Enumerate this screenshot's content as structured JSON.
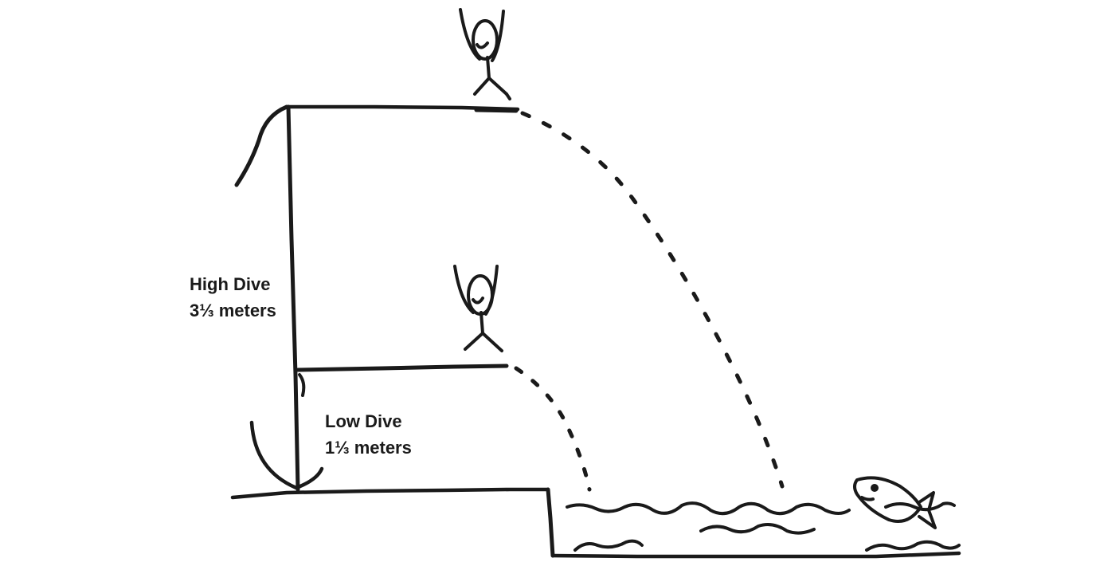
{
  "labels": {
    "high_dive": {
      "name": "High Dive",
      "height": "3⅓ meters"
    },
    "low_dive": {
      "name": "Low Dive",
      "height": "1⅓ meters"
    }
  },
  "colors": {
    "ink": "#1a1a1a",
    "background": "#ffffff"
  },
  "icons": [
    "stick-figure-diver-icon",
    "fish-icon",
    "water-waves-icon"
  ]
}
